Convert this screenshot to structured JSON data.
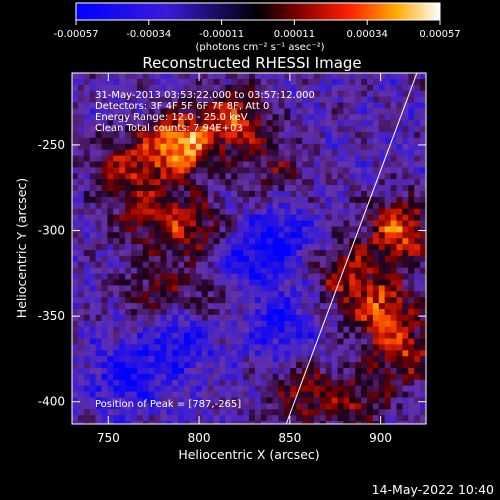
{
  "chart_data": {
    "type": "heatmap",
    "title": "Reconstructed RHESSI Image",
    "xlabel": "Heliocentric X (arcsec)",
    "ylabel": "Heliocentric Y (arcsec)",
    "xlim": [
      730,
      925
    ],
    "ylim": [
      -413,
      -208
    ],
    "x_ticks": [
      750,
      800,
      850,
      900
    ],
    "y_ticks": [
      -250,
      -300,
      -350,
      -400
    ],
    "colorbar": {
      "ticks": [
        "-0.00057",
        "-0.00034",
        "-0.00011",
        "0.00011",
        "0.00034",
        "0.00057"
      ],
      "unit_label": "(photons cm⁻² s⁻¹ asec⁻²)",
      "range": [
        -0.00057,
        0.00057
      ]
    },
    "annotations": [
      "31-May-2013 03:53:22.000 to 03:57:12.000",
      "Detectors: 3F 4F 5F 6F 7F 8F, Att 0",
      "Energy Range: 12.0 - 25.0 keV",
      "Clean    Total counts: 7.94E+03"
    ],
    "peak_label": "Position of Peak = [787,-265]",
    "peak_position": [
      787,
      -265
    ],
    "limb_line": [
      [
        848,
        -413
      ],
      [
        920,
        -208
      ]
    ],
    "hotspots": [
      {
        "x": 790,
        "y": -250,
        "w": 1.0
      },
      {
        "x": 820,
        "y": -235,
        "w": 0.7
      },
      {
        "x": 760,
        "y": -262,
        "w": 0.55
      },
      {
        "x": 772,
        "y": -290,
        "w": 0.5
      },
      {
        "x": 797,
        "y": -300,
        "w": 0.55
      },
      {
        "x": 910,
        "y": -300,
        "w": 0.8
      },
      {
        "x": 900,
        "y": -345,
        "w": 0.7
      },
      {
        "x": 913,
        "y": -372,
        "w": 0.6
      },
      {
        "x": 878,
        "y": -325,
        "w": 0.5
      },
      {
        "x": 857,
        "y": -395,
        "w": 0.45
      },
      {
        "x": 810,
        "y": -335,
        "w": 0.35
      },
      {
        "x": 775,
        "y": -335,
        "w": 0.4
      },
      {
        "x": 842,
        "y": -265,
        "w": 0.35
      },
      {
        "x": 885,
        "y": -400,
        "w": 0.45
      }
    ],
    "coldspots": [
      {
        "x": 820,
        "y": -320
      },
      {
        "x": 845,
        "y": -305
      },
      {
        "x": 790,
        "y": -365
      },
      {
        "x": 845,
        "y": -355
      },
      {
        "x": 760,
        "y": -385
      }
    ]
  },
  "footer": {
    "timestamp": "14-May-2022 10:40"
  }
}
